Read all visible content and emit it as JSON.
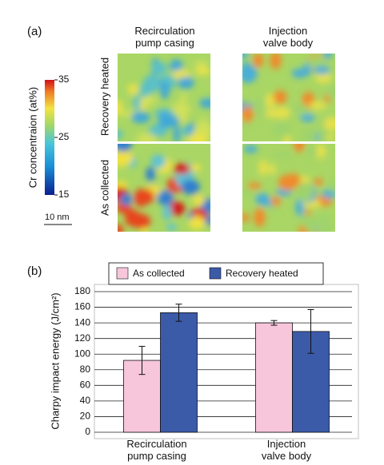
{
  "panel_a": {
    "label": "(a)",
    "columns": [
      "Recirculation pump casing",
      "Injection valve body"
    ],
    "rows": [
      "Recovery heated",
      "As collected"
    ],
    "colorbar": {
      "label": "Cr concentraion (at%)",
      "lim": [
        15,
        35
      ],
      "ticks": [
        15,
        25,
        35
      ]
    },
    "scale_bar": "10 nm"
  },
  "chart_data": {
    "type": "bar",
    "panel_label": "(b)",
    "categories": [
      "Recirculation pump casing",
      "Injection valve body"
    ],
    "series": [
      {
        "name": "As collected",
        "color": "#f7c6db",
        "values": [
          92,
          140
        ],
        "errors": [
          18,
          3
        ]
      },
      {
        "name": "Recovery heated",
        "color": "#3b5ba9",
        "values": [
          153,
          129
        ],
        "errors": [
          11,
          28
        ]
      }
    ],
    "y_label": "Charpy impact energy (J/cm²)",
    "ylim": [
      0,
      180
    ],
    "yticks": [
      0,
      20,
      40,
      60,
      80,
      100,
      120,
      140,
      160,
      180
    ],
    "grid": true,
    "legend": "top"
  }
}
